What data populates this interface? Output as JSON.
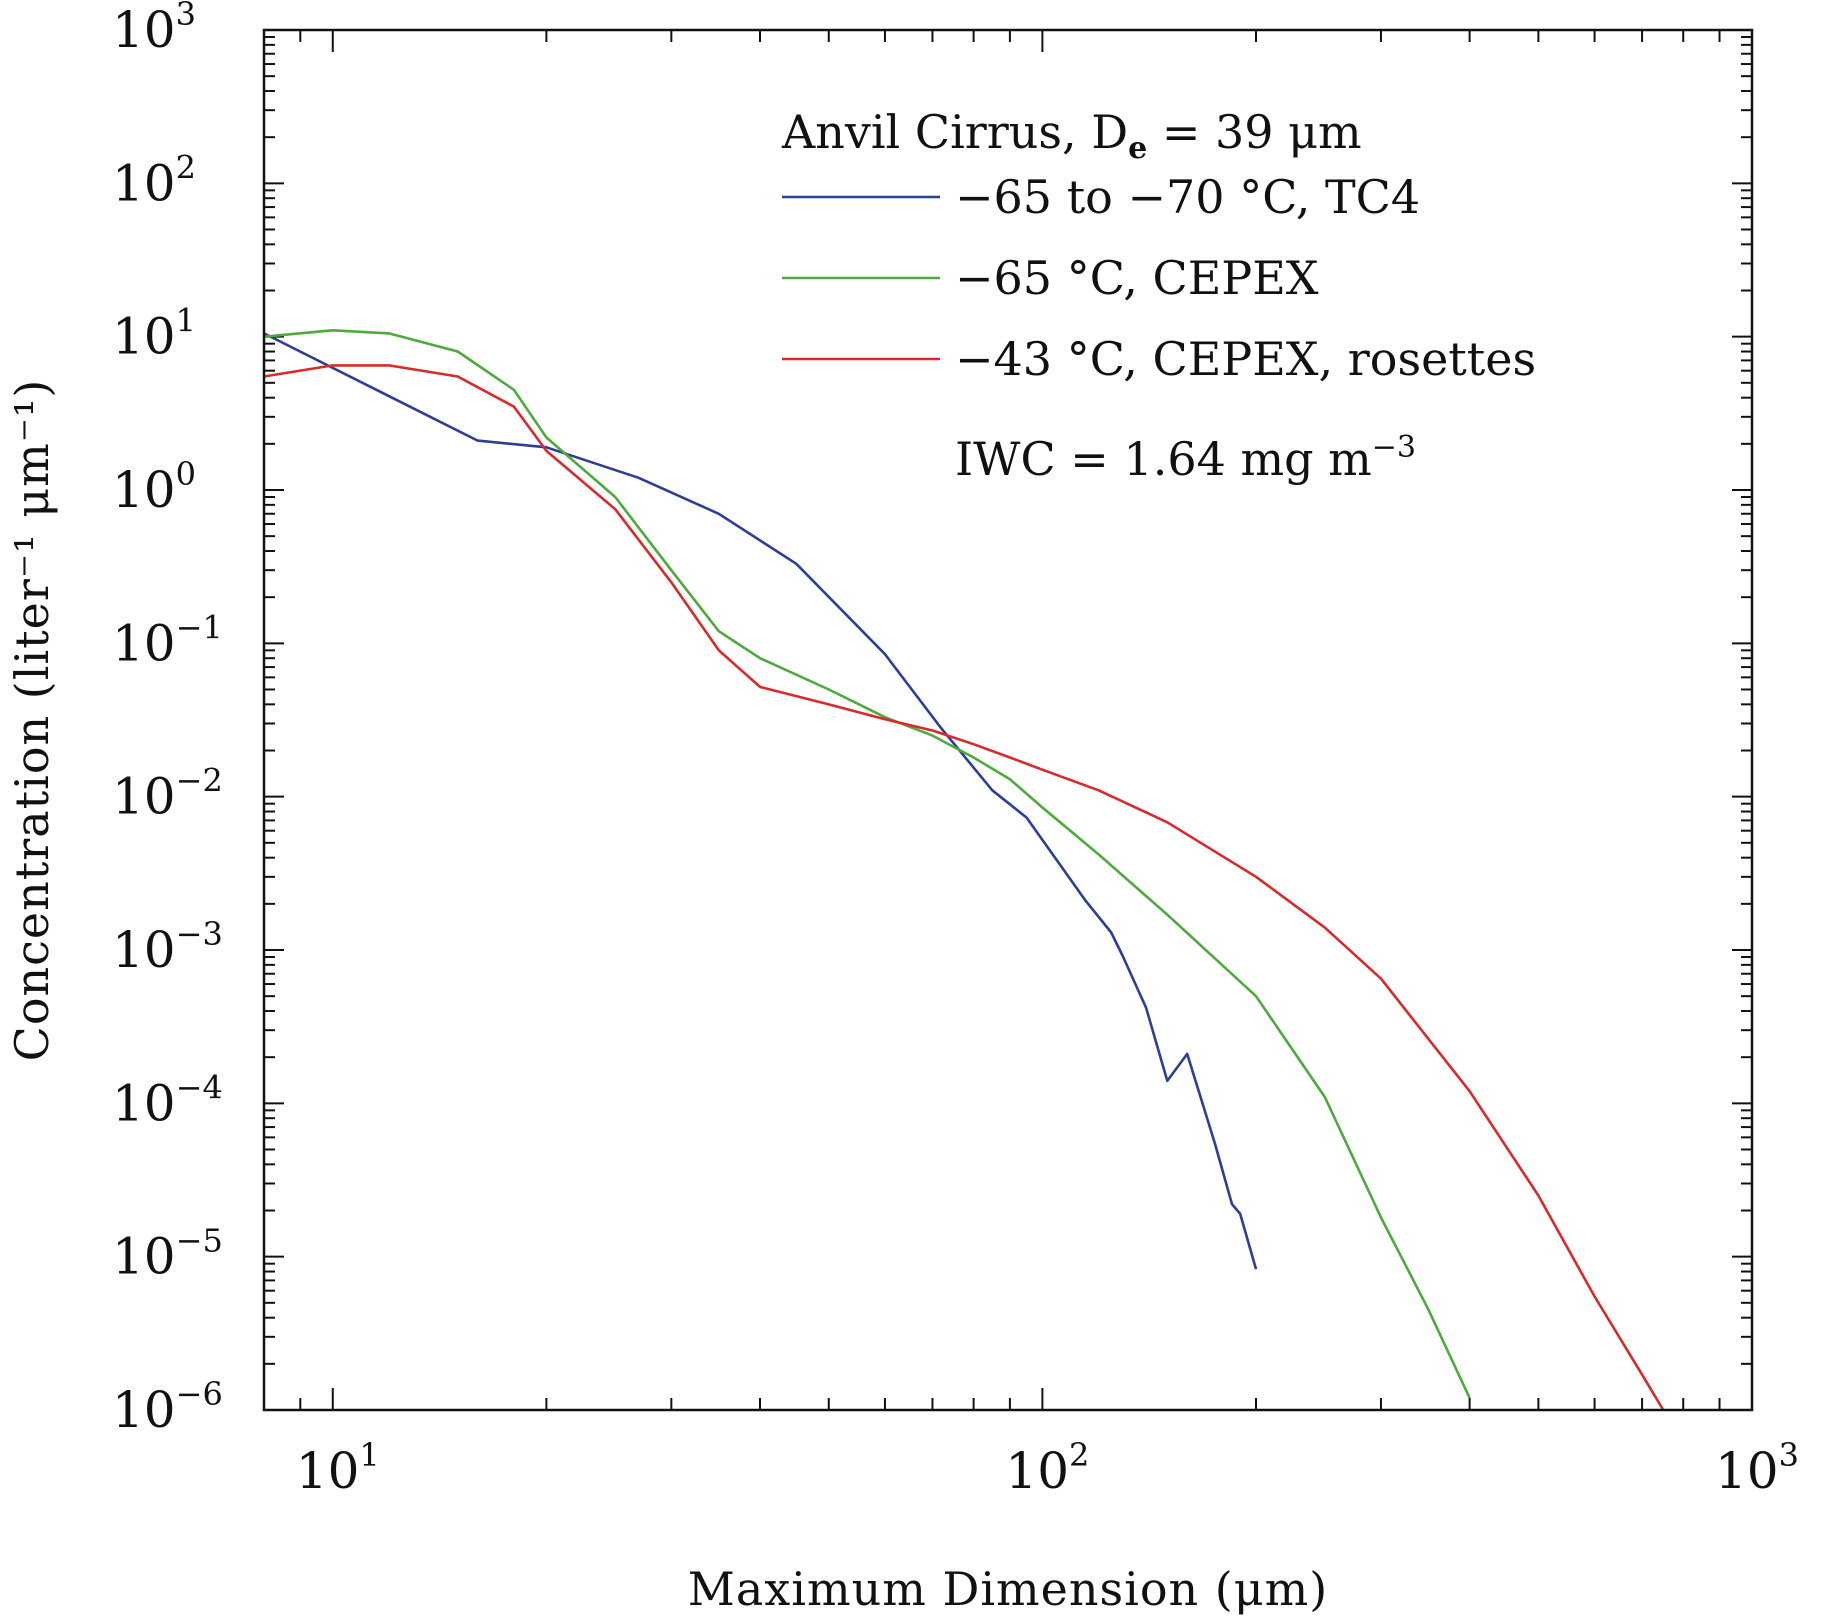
{
  "chart_data": {
    "type": "line",
    "xscale": "log",
    "yscale": "log",
    "xlim": [
      8,
      1000
    ],
    "ylim": [
      1e-06,
      1000
    ],
    "xlabel": "Maximum Dimension (μm)",
    "ylabel": "Concentration (liter⁻¹ μm⁻¹)",
    "grid": false,
    "legend": "top-right",
    "x_tick_labels": [
      {
        "value": 10,
        "base": "10",
        "exp": "1"
      },
      {
        "value": 100,
        "base": "10",
        "exp": "2"
      },
      {
        "value": 1000,
        "base": "10",
        "exp": "3"
      }
    ],
    "y_tick_labels": [
      {
        "value": 1000,
        "base": "10",
        "exp": "3"
      },
      {
        "value": 100,
        "base": "10",
        "exp": "2"
      },
      {
        "value": 10,
        "base": "10",
        "exp": "1"
      },
      {
        "value": 1,
        "base": "10",
        "exp": "0"
      },
      {
        "value": 0.1,
        "base": "10",
        "exp": "−1"
      },
      {
        "value": 0.01,
        "base": "10",
        "exp": "−2"
      },
      {
        "value": 0.001,
        "base": "10",
        "exp": "−3"
      },
      {
        "value": 0.0001,
        "base": "10",
        "exp": "−4"
      },
      {
        "value": 1e-05,
        "base": "10",
        "exp": "−5"
      },
      {
        "value": 1e-06,
        "base": "10",
        "exp": "−6"
      }
    ],
    "annotation_title": {
      "main": "Anvil Cirrus, D",
      "sub": "e",
      "rest": " = 39 μm"
    },
    "annotation_iwc": {
      "main": "IWC = 1.64 mg m",
      "sup": "−3"
    },
    "series": [
      {
        "name": "−65 to −70 °C, TC4",
        "color": "#2c3e95",
        "x": [
          8,
          16,
          20,
          27,
          35,
          45,
          60,
          72,
          85,
          95,
          115,
          125,
          130,
          140,
          150,
          160,
          175,
          185,
          190,
          200
        ],
        "y": [
          10.5,
          2.1,
          1.9,
          1.2,
          0.7,
          0.33,
          0.085,
          0.028,
          0.011,
          0.0073,
          0.0021,
          0.0013,
          0.0009,
          0.00042,
          0.00014,
          0.00021,
          5.5e-05,
          2.2e-05,
          1.9e-05,
          8.3e-06
        ]
      },
      {
        "name": "−65 °C, CEPEX",
        "color": "#4daa3d",
        "x": [
          8,
          10,
          12,
          15,
          18,
          20,
          25,
          30,
          35,
          40,
          50,
          60,
          70,
          80,
          90,
          100,
          120,
          150,
          200,
          250,
          300,
          350,
          400
        ],
        "y": [
          10,
          11,
          10.5,
          8,
          4.5,
          2.2,
          0.9,
          0.3,
          0.12,
          0.08,
          0.05,
          0.033,
          0.025,
          0.018,
          0.013,
          0.0085,
          0.0042,
          0.0017,
          0.0005,
          0.00011,
          1.8e-05,
          4.5e-06,
          1.2e-06
        ]
      },
      {
        "name": "−43 °C, CEPEX, rosettes",
        "color": "#d92a2a",
        "x": [
          8,
          10,
          12,
          15,
          18,
          20,
          25,
          30,
          35,
          40,
          50,
          60,
          70,
          80,
          90,
          100,
          120,
          150,
          200,
          250,
          300,
          400,
          500,
          600,
          700,
          750
        ],
        "y": [
          5.5,
          6.5,
          6.5,
          5.5,
          3.5,
          1.8,
          0.75,
          0.25,
          0.09,
          0.052,
          0.04,
          0.032,
          0.027,
          0.022,
          0.018,
          0.015,
          0.011,
          0.0068,
          0.003,
          0.0014,
          0.00065,
          0.00012,
          2.5e-05,
          5.5e-06,
          1.7e-06,
          1e-06
        ]
      }
    ]
  }
}
